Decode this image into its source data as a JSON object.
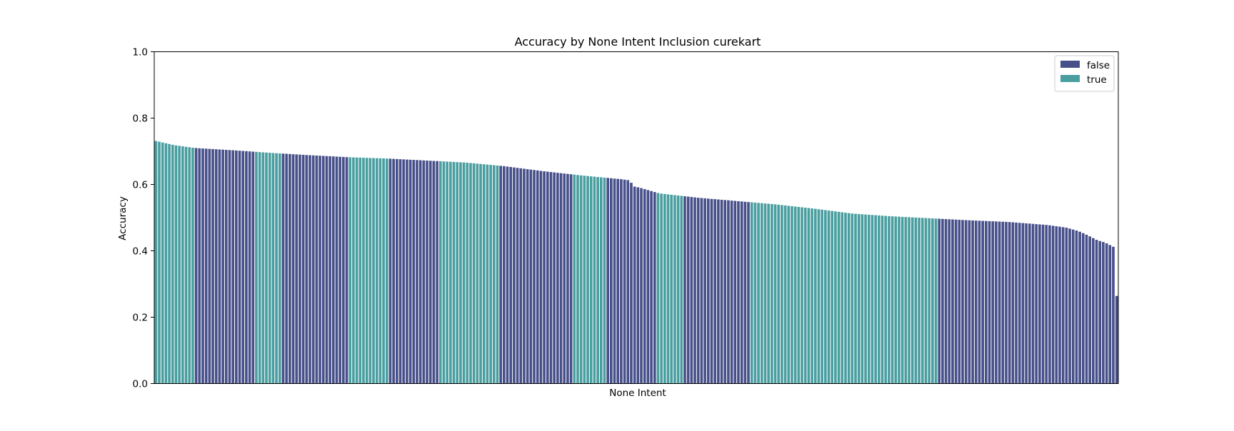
{
  "chart_data": {
    "type": "bar",
    "title": "Accuracy by None Intent Inclusion curekart",
    "xlabel": "None Intent",
    "ylabel": "Accuracy",
    "ylim": [
      0,
      1.0
    ],
    "yticks": [
      "0.0",
      "0.2",
      "0.4",
      "0.6",
      "0.8",
      "1.0"
    ],
    "x_tick_labels_visible": false,
    "grid": false,
    "legend": {
      "placement": "top-right"
    },
    "series": [
      {
        "name": "false",
        "color": "#48508a"
      },
      {
        "name": "true",
        "color": "#4a9ea0"
      }
    ],
    "bar_count": 288,
    "value_profile": [
      [
        0,
        0.731
      ],
      [
        10,
        0.718
      ],
      [
        20,
        0.71
      ],
      [
        40,
        0.703
      ],
      [
        60,
        0.695
      ],
      [
        80,
        0.688
      ],
      [
        100,
        0.682
      ],
      [
        120,
        0.678
      ],
      [
        140,
        0.672
      ],
      [
        160,
        0.666
      ],
      [
        180,
        0.655
      ],
      [
        200,
        0.64
      ],
      [
        220,
        0.627
      ],
      [
        240,
        0.616
      ],
      [
        245,
        0.612
      ],
      [
        246,
        0.595
      ],
      [
        250,
        0.59
      ],
      [
        260,
        0.573
      ],
      [
        280,
        0.56
      ],
      [
        300,
        0.55
      ],
      [
        320,
        0.54
      ],
      [
        340,
        0.527
      ],
      [
        360,
        0.512
      ],
      [
        380,
        0.504
      ],
      [
        400,
        0.498
      ],
      [
        420,
        0.492
      ],
      [
        440,
        0.487
      ],
      [
        460,
        0.478
      ],
      [
        470,
        0.47
      ],
      [
        476,
        0.46
      ],
      [
        480,
        0.45
      ],
      [
        486,
        0.432
      ],
      [
        490,
        0.425
      ],
      [
        495,
        0.41
      ],
      [
        496,
        0.264
      ]
    ],
    "category_runs": [
      [
        "true",
        12
      ],
      [
        "false",
        18
      ],
      [
        "true",
        8
      ],
      [
        "false",
        20
      ],
      [
        "true",
        12
      ],
      [
        "false",
        15
      ],
      [
        "true",
        18
      ],
      [
        "false",
        22
      ],
      [
        "true",
        10
      ],
      [
        "false",
        15
      ],
      [
        "true",
        8
      ],
      [
        "false",
        20
      ],
      [
        "true",
        56
      ],
      [
        "false",
        50
      ],
      [
        "false",
        4
      ]
    ]
  }
}
